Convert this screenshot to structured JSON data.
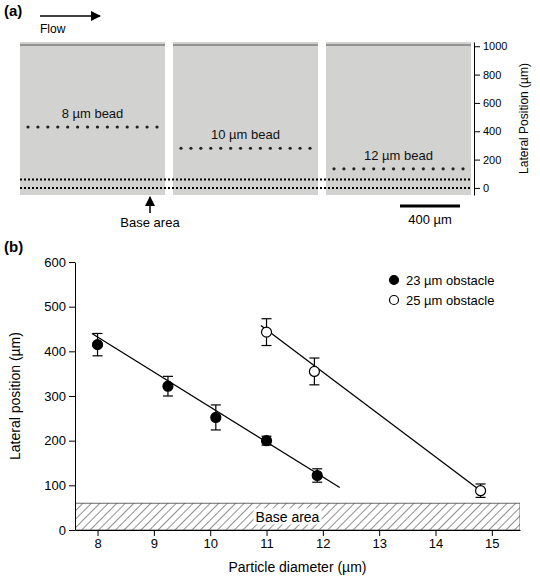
{
  "chart_data": [
    {
      "type": "image",
      "title": "(a)",
      "y_label": "Lateral Position (µm)",
      "ylim": [
        -50,
        1030
      ],
      "yticks": [
        0,
        200,
        400,
        600,
        800,
        1000
      ],
      "annotations": [
        "Flow",
        "Base area",
        "400 µm"
      ],
      "base_area": [
        0,
        60
      ],
      "tracks": [
        {
          "name": "8 µm bead",
          "value": 430
        },
        {
          "name": "10 µm bead",
          "value": 280
        },
        {
          "name": "12 µm bead",
          "value": 135
        }
      ]
    },
    {
      "type": "scatter",
      "title": "(b)",
      "x_label": "Particle diameter (µm)",
      "y_label": "Lateral position (µm)",
      "xlim": [
        7.6,
        15.5
      ],
      "xticks": [
        8,
        9,
        10,
        11,
        12,
        13,
        14,
        15
      ],
      "ylim": [
        0,
        600
      ],
      "yticks": [
        0,
        100,
        200,
        300,
        400,
        500,
        600
      ],
      "legend": "upper right",
      "annotations": [
        "Base area"
      ],
      "base_area": [
        0,
        60
      ],
      "series": [
        {
          "name": "23 µm obstacle",
          "color": "#000000",
          "marker": "filled_circle",
          "line_style": "solid",
          "x": [
            8.0,
            9.25,
            10.1,
            11.0,
            11.9
          ],
          "values": [
            415,
            322,
            252,
            200,
            122
          ],
          "errors": [
            25,
            22,
            28,
            10,
            15
          ],
          "fit": {
            "x": [
              7.9,
              12.3
            ],
            "values": [
              440,
              95
            ]
          }
        },
        {
          "name": "25 µm obstacle",
          "color": "#000000",
          "marker": "open_circle",
          "line_style": "solid",
          "x": [
            11.0,
            11.85,
            14.8
          ],
          "values": [
            443,
            355,
            88
          ],
          "errors": [
            30,
            30,
            15
          ],
          "fit": {
            "x": [
              10.9,
              14.8
            ],
            "values": [
              458,
              88
            ]
          }
        }
      ]
    }
  ]
}
